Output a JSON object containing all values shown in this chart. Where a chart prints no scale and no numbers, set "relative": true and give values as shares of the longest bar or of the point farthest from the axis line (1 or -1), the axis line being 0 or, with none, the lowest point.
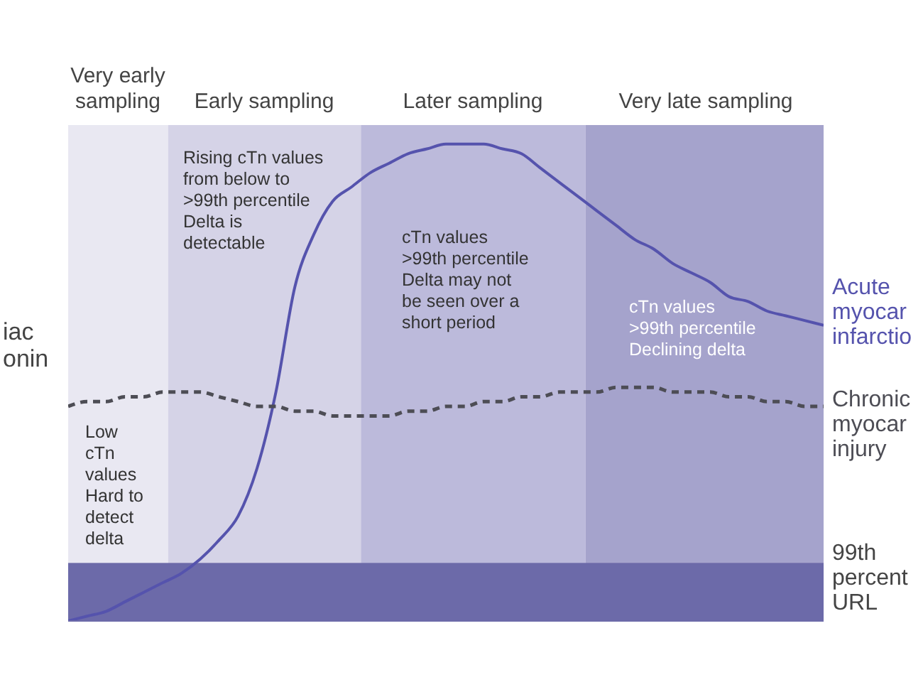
{
  "chart_data": {
    "type": "line",
    "relative": true,
    "ylabel": "iac onin",
    "categories": [
      null,
      null,
      null,
      null,
      null,
      null,
      null,
      null,
      null,
      null,
      null,
      null,
      null,
      null,
      null,
      null,
      null,
      null,
      null,
      null,
      null,
      null,
      null,
      null,
      null,
      null,
      null,
      null,
      null,
      null,
      null,
      null,
      null,
      null,
      null,
      null,
      null,
      null,
      null,
      null,
      null
    ],
    "series": [
      {
        "name": "Acute myocar infarctio",
        "color": "#5553ad",
        "line_style": "solid",
        "values": [
          0,
          0.01,
          0.02,
          0.04,
          0.06,
          0.08,
          0.1,
          0.13,
          0.17,
          0.22,
          0.32,
          0.48,
          0.7,
          0.81,
          0.88,
          0.91,
          0.94,
          0.96,
          0.98,
          0.99,
          1,
          1,
          1,
          0.99,
          0.98,
          0.95,
          0.92,
          0.89,
          0.86,
          0.83,
          0.8,
          0.78,
          0.75,
          0.73,
          0.71,
          0.68,
          0.67,
          0.65,
          0.64,
          0.63,
          0.62
        ]
      },
      {
        "name": "Chronic myocar injury",
        "color": "#4d4d55",
        "line_style": "dashed",
        "values": [
          0.45,
          0.46,
          0.46,
          0.47,
          0.47,
          0.48,
          0.48,
          0.48,
          0.47,
          0.46,
          0.45,
          0.45,
          0.44,
          0.44,
          0.43,
          0.43,
          0.43,
          0.43,
          0.44,
          0.44,
          0.45,
          0.45,
          0.46,
          0.46,
          0.47,
          0.47,
          0.48,
          0.48,
          0.48,
          0.49,
          0.49,
          0.49,
          0.48,
          0.48,
          0.48,
          0.47,
          0.47,
          0.46,
          0.46,
          0.45,
          0.45
        ]
      }
    ],
    "annotations": [
      "Very early\nsampling",
      "Early sampling",
      "Later sampling",
      "Very late sampling",
      "Low\ncTn\nvalues\nHard to\ndetect\ndelta",
      "Rising cTn values\nfrom below to\n>99th percentile\nDelta is\ndetectable",
      "cTn values\n>99th percentile\nDelta may not\nbe seen over a\nshort period",
      "cTn values\n>99th percentile\nDeclining delta",
      "99th\npercent\nURL"
    ]
  }
}
